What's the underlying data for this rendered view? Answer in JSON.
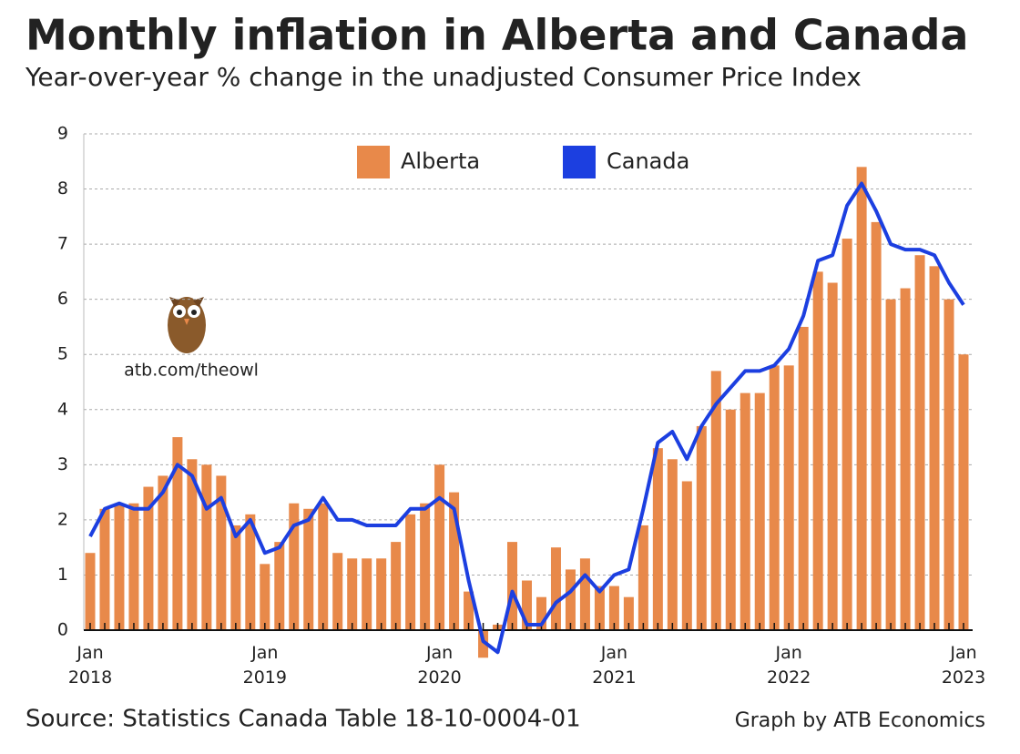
{
  "chart_data": {
    "type": "bar-line",
    "title": "Monthly inflation in Alberta and Canada",
    "subtitle": "Year-over-year % change in the unadjusted Consumer Price Index",
    "source": "Source: Statistics Canada Table 18-10-0004-01",
    "credit": "Graph by ATB Economics",
    "watermark": "atb.com/theowl",
    "categories": [
      "Jan\n2018",
      null,
      null,
      null,
      null,
      null,
      null,
      null,
      null,
      null,
      null,
      null,
      "Jan\n2019",
      null,
      null,
      null,
      null,
      null,
      null,
      null,
      null,
      null,
      null,
      null,
      "Jan\n2020",
      null,
      null,
      null,
      null,
      null,
      null,
      null,
      null,
      null,
      null,
      null,
      "Jan\n2021",
      null,
      null,
      null,
      null,
      null,
      null,
      null,
      null,
      null,
      null,
      null,
      "Jan\n2022",
      null,
      null,
      null,
      null,
      null,
      null,
      null,
      null,
      null,
      null,
      null,
      "Jan\n2023"
    ],
    "series": [
      {
        "name": "Alberta",
        "kind": "bar",
        "color": "#e8894a",
        "values": [
          1.4,
          2.2,
          2.3,
          2.3,
          2.6,
          2.8,
          3.5,
          3.1,
          3.0,
          2.8,
          1.9,
          2.1,
          1.2,
          1.6,
          2.3,
          2.2,
          2.3,
          1.4,
          1.3,
          1.3,
          1.3,
          1.6,
          2.1,
          2.3,
          3.0,
          2.5,
          0.7,
          -0.5,
          0.1,
          1.6,
          0.9,
          0.6,
          1.5,
          1.1,
          1.3,
          0.8,
          0.8,
          0.6,
          1.9,
          3.3,
          3.1,
          2.7,
          3.7,
          4.7,
          4.0,
          4.3,
          4.3,
          4.8,
          4.8,
          5.5,
          6.5,
          6.3,
          7.1,
          8.4,
          7.4,
          6.0,
          6.2,
          6.8,
          6.6,
          6.0,
          5.0
        ]
      },
      {
        "name": "Canada",
        "kind": "line",
        "color": "#1c3fe0",
        "values": [
          1.7,
          2.2,
          2.3,
          2.2,
          2.2,
          2.5,
          3.0,
          2.8,
          2.2,
          2.4,
          1.7,
          2.0,
          1.4,
          1.5,
          1.9,
          2.0,
          2.4,
          2.0,
          2.0,
          1.9,
          1.9,
          1.9,
          2.2,
          2.2,
          2.4,
          2.2,
          0.9,
          -0.2,
          -0.4,
          0.7,
          0.1,
          0.1,
          0.5,
          0.7,
          1.0,
          0.7,
          1.0,
          1.1,
          2.2,
          3.4,
          3.6,
          3.1,
          3.7,
          4.1,
          4.4,
          4.7,
          4.7,
          4.8,
          5.1,
          5.7,
          6.7,
          6.8,
          7.7,
          8.1,
          7.6,
          7.0,
          6.9,
          6.9,
          6.8,
          6.3,
          5.9
        ]
      }
    ],
    "ylim": [
      0,
      9
    ],
    "yticks": [
      0,
      1,
      2,
      3,
      4,
      5,
      6,
      7,
      8,
      9
    ],
    "grid": true
  }
}
